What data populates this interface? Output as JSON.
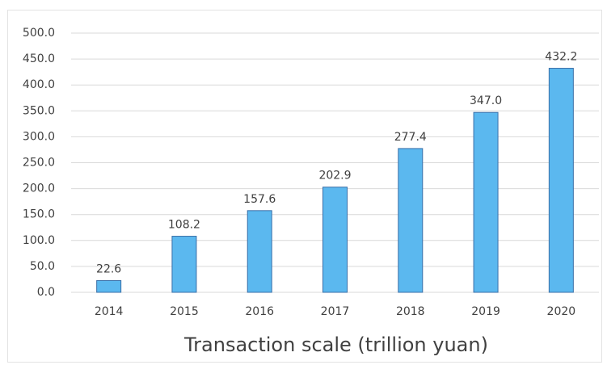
{
  "chart_data": {
    "type": "bar",
    "x_label": "Transaction scale (trillion yuan)",
    "categories": [
      "2014",
      "2015",
      "2016",
      "2017",
      "2018",
      "2019",
      "2020"
    ],
    "values": [
      22.6,
      108.2,
      157.6,
      202.9,
      277.4,
      347.0,
      432.2
    ],
    "value_labels": [
      "22.6",
      "108.2",
      "157.6",
      "202.9",
      "277.4",
      "347.0",
      "432.2"
    ],
    "color": "#5bb8ef",
    "ylim": [
      0,
      500
    ],
    "yticks": [
      {
        "value": 0,
        "label": "0.0"
      },
      {
        "value": 50,
        "label": "50.0"
      },
      {
        "value": 100,
        "label": "100.0"
      },
      {
        "value": 150,
        "label": "150.0"
      },
      {
        "value": 200,
        "label": "200.0"
      },
      {
        "value": 250,
        "label": "250.0"
      },
      {
        "value": 300,
        "label": "300.0"
      },
      {
        "value": 350,
        "label": "350.0"
      },
      {
        "value": 400,
        "label": "400.0"
      },
      {
        "value": 450,
        "label": "450.0"
      },
      {
        "value": 500,
        "label": "500.0"
      }
    ],
    "grid": true
  }
}
